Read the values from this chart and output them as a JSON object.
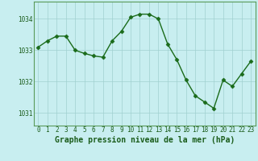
{
  "x": [
    0,
    1,
    2,
    3,
    4,
    5,
    6,
    7,
    8,
    9,
    10,
    11,
    12,
    13,
    14,
    15,
    16,
    17,
    18,
    19,
    20,
    21,
    22,
    23
  ],
  "y": [
    1033.1,
    1033.3,
    1033.45,
    1033.45,
    1033.0,
    1032.9,
    1032.82,
    1032.78,
    1033.3,
    1033.6,
    1034.05,
    1034.15,
    1034.15,
    1034.0,
    1033.2,
    1032.7,
    1032.05,
    1031.55,
    1031.35,
    1031.15,
    1032.05,
    1031.85,
    1032.25,
    1032.65
  ],
  "line_color": "#1a6b1a",
  "marker": "D",
  "markersize": 2.5,
  "linewidth": 1.0,
  "bg_color": "#c8eef0",
  "grid_color": "#a0d0d0",
  "xlabel": "Graphe pression niveau de la mer (hPa)",
  "xlabel_color": "#1a5c1a",
  "xlabel_fontsize": 7,
  "yticks": [
    1031,
    1032,
    1033,
    1034
  ],
  "xticks": [
    0,
    1,
    2,
    3,
    4,
    5,
    6,
    7,
    8,
    9,
    10,
    11,
    12,
    13,
    14,
    15,
    16,
    17,
    18,
    19,
    20,
    21,
    22,
    23
  ],
  "ylim": [
    1030.6,
    1034.55
  ],
  "xlim": [
    -0.5,
    23.5
  ],
  "tick_fontsize": 5.5,
  "tick_color": "#1a5c1a",
  "spine_color": "#5a9a5a"
}
